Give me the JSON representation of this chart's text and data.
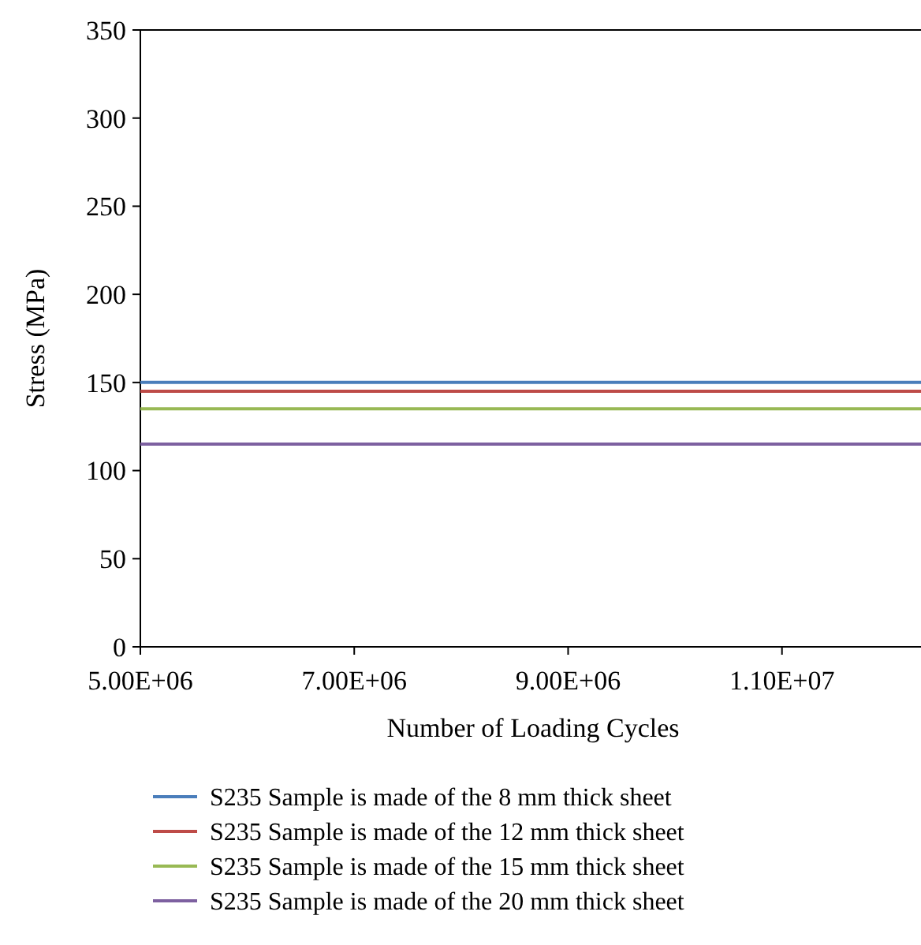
{
  "chart_data": {
    "type": "line",
    "xlabel": "Number of Loading Cycles",
    "ylabel": "Stress (MPa)",
    "xlim": [
      5000000,
      12300000
    ],
    "ylim": [
      0,
      350
    ],
    "xticks": [
      {
        "value": 5000000,
        "label": "5.00E+06"
      },
      {
        "value": 7000000,
        "label": "7.00E+06"
      },
      {
        "value": 9000000,
        "label": "9.00E+06"
      },
      {
        "value": 11000000,
        "label": "1.10E+07"
      }
    ],
    "yticks": [
      0,
      50,
      100,
      150,
      200,
      250,
      300,
      350
    ],
    "grid": false,
    "legend": "bottom",
    "marker": "none",
    "line_style": "solid",
    "x": [
      5000000,
      12300000
    ],
    "series": [
      {
        "name": "S235 Sample is made of the 8 mm thick sheet",
        "color": "#4a7ebb",
        "values": [
          150,
          150
        ]
      },
      {
        "name": "S235 Sample is made of the 12 mm thick sheet",
        "color": "#be4b48",
        "values": [
          145,
          145
        ]
      },
      {
        "name": "S235 Sample is made of the 15 mm thick sheet",
        "color": "#98b954",
        "values": [
          135,
          135
        ]
      },
      {
        "name": "S235 Sample is made of the 20 mm thick sheet",
        "color": "#7d60a0",
        "values": [
          115,
          115
        ]
      }
    ]
  }
}
